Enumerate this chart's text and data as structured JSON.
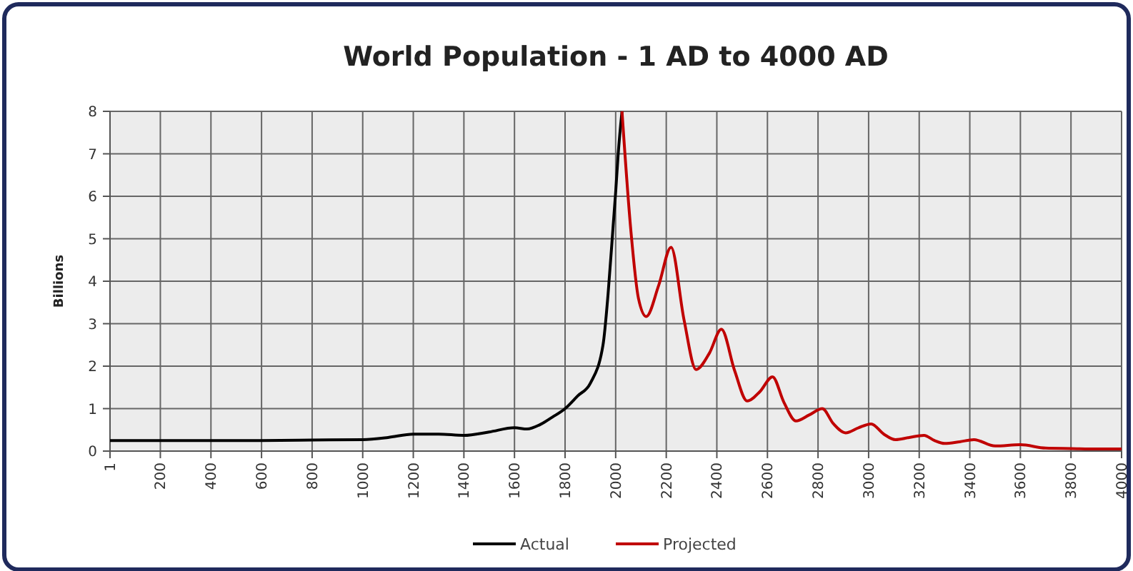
{
  "chart_data": {
    "type": "line",
    "title": "World Population - 1 AD to 4000 AD",
    "ylabel": "Billions",
    "xlim": [
      1,
      4000
    ],
    "xticks": [
      1,
      200,
      400,
      600,
      800,
      1000,
      1200,
      1400,
      1600,
      1800,
      2000,
      2200,
      2400,
      2600,
      2800,
      3000,
      3200,
      3400,
      3600,
      3800,
      4000
    ],
    "ylim": [
      0,
      8
    ],
    "yticks": [
      0,
      1,
      2,
      3,
      4,
      5,
      6,
      7,
      8
    ],
    "grid": true,
    "legend": "bottom",
    "marker": "none",
    "line_style": "solid",
    "series": [
      {
        "name": "Actual",
        "color": "#000000",
        "x": [
          1,
          200,
          400,
          600,
          800,
          1000,
          1100,
          1200,
          1300,
          1400,
          1500,
          1600,
          1650,
          1700,
          1750,
          1800,
          1850,
          1900,
          1950,
          1970,
          1990,
          2000,
          2010,
          2025
        ],
        "values": [
          0.25,
          0.25,
          0.25,
          0.25,
          0.26,
          0.27,
          0.32,
          0.4,
          0.4,
          0.37,
          0.45,
          0.55,
          0.52,
          0.62,
          0.8,
          1.0,
          1.3,
          1.6,
          2.5,
          3.7,
          5.3,
          6.1,
          7.0,
          8
        ]
      },
      {
        "name": "Projected",
        "color": "#c00000",
        "x": [
          2025,
          2060,
          2090,
          2121,
          2170,
          2219,
          2270,
          2318,
          2370,
          2418,
          2470,
          2520,
          2570,
          2620,
          2665,
          2713,
          2765,
          2817,
          2860,
          2909,
          2960,
          3010,
          3060,
          3106,
          3160,
          3219,
          3260,
          3300,
          3360,
          3416,
          3500,
          3600,
          3700,
          3800,
          3900,
          4000
        ],
        "values": [
          8,
          5.2,
          3.6,
          3.17,
          3.9,
          4.8,
          3.1,
          1.92,
          2.3,
          2.87,
          1.9,
          1.18,
          1.4,
          1.75,
          1.15,
          0.71,
          0.85,
          1.0,
          0.65,
          0.43,
          0.55,
          0.64,
          0.4,
          0.27,
          0.32,
          0.37,
          0.25,
          0.18,
          0.22,
          0.27,
          0.12,
          0.15,
          0.07,
          0.06,
          0.05,
          0.05
        ]
      }
    ]
  }
}
